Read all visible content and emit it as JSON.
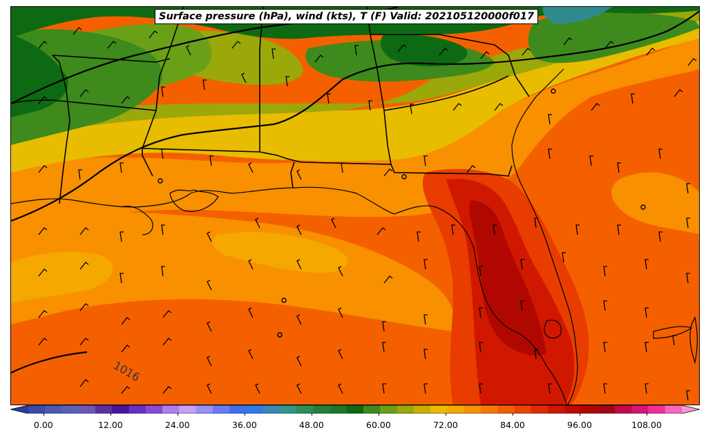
{
  "title": "Surface pressure (hPa), wind (kts), T (F) Valid: 202105120000f017",
  "isobar_label": "1016",
  "colorbar": {
    "ticks": [
      "0.00",
      "12.00",
      "24.00",
      "36.00",
      "48.00",
      "60.00",
      "72.00",
      "84.00",
      "96.00",
      "108.00"
    ],
    "colors": [
      "#2b3a9c",
      "#3a4aa8",
      "#4a5ab4",
      "#5a5fb8",
      "#6a58b8",
      "#5a2fa6",
      "#4a12a0",
      "#6a2fc4",
      "#8a4ad8",
      "#b07cf0",
      "#c8a0f8",
      "#9a90f8",
      "#6a7af8",
      "#3f6ff0",
      "#2f7ae8",
      "#3a8ab8",
      "#2f9a8a",
      "#2a8f5a",
      "#23803a",
      "#1a7a2a",
      "#0d6a12",
      "#3e8a1c",
      "#6aa018",
      "#9aa80a",
      "#c8b000",
      "#e8bc00",
      "#f4a800",
      "#f89000",
      "#f87800",
      "#f46000",
      "#ee4400",
      "#e02c00",
      "#d01800",
      "#c00a00",
      "#b00800",
      "#a00818",
      "#c00a4a",
      "#d81478",
      "#f03098",
      "#f868b8",
      "#f898d0"
    ]
  },
  "map_colors": {
    "dark_green": "#0d6a12",
    "mid_green": "#3e8a1c",
    "light_green": "#6aa018",
    "olive": "#9aa80a",
    "yellow": "#e8bc00",
    "light_orange": "#f4a800",
    "orange": "#f89000",
    "dark_orange": "#f46000",
    "red_orange": "#e83c00",
    "red": "#d01800",
    "dark_red": "#b00800",
    "teal": "#2f8a8a"
  }
}
